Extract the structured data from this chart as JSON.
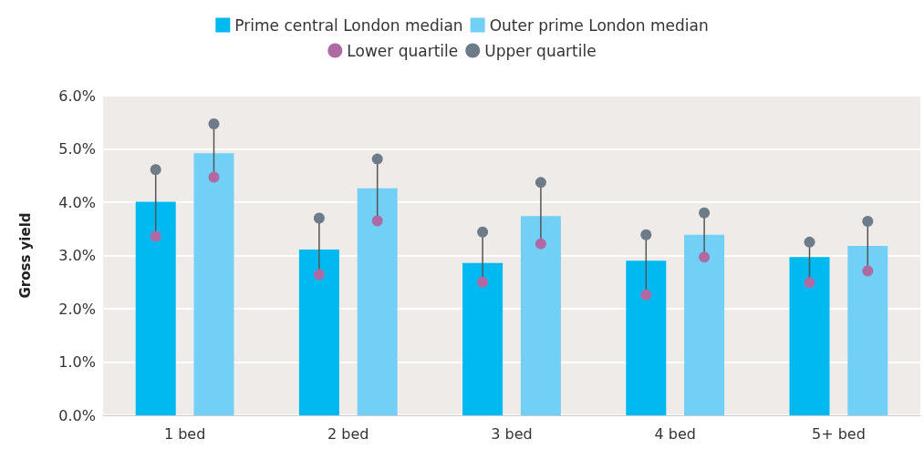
{
  "chart_data": {
    "type": "bar",
    "ylabel": "Gross yield",
    "categories": [
      "1 bed",
      "2 bed",
      "3 bed",
      "4 bed",
      "5+ bed"
    ],
    "series": [
      {
        "name": "Prime central London median",
        "color": "#00b9f0",
        "values": [
          4.01,
          3.11,
          2.86,
          2.9,
          2.97
        ]
      },
      {
        "name": "Outer prime London median",
        "color": "#72cff5",
        "values": [
          4.92,
          4.26,
          3.74,
          3.39,
          3.18
        ]
      },
      {
        "name": "Lower quartile",
        "type": "scatter",
        "color": "#b06aa3",
        "x": [
          "1 bed",
          "1 bed",
          "2 bed",
          "2 bed",
          "3 bed",
          "3 bed",
          "4 bed",
          "4 bed",
          "5+ bed",
          "5+ bed"
        ],
        "values": [
          3.36,
          4.47,
          2.64,
          3.65,
          2.5,
          3.22,
          2.26,
          2.97,
          2.49,
          2.71
        ]
      },
      {
        "name": "Upper quartile",
        "type": "scatter",
        "color": "#6e7b88",
        "x": [
          "1 bed",
          "1 bed",
          "2 bed",
          "2 bed",
          "3 bed",
          "3 bed",
          "4 bed",
          "4 bed",
          "5+ bed",
          "5+ bed"
        ],
        "values": [
          4.61,
          5.47,
          3.7,
          4.81,
          3.44,
          4.37,
          3.39,
          3.8,
          3.25,
          3.64
        ]
      }
    ],
    "ylim": [
      0,
      6
    ],
    "yticks": [
      {
        "value": 0,
        "label": "0.0%"
      },
      {
        "value": 1,
        "label": "1.0%"
      },
      {
        "value": 2,
        "label": "2.0%"
      },
      {
        "value": 3,
        "label": "3.0%"
      },
      {
        "value": 4,
        "label": "4.0%"
      },
      {
        "value": 5,
        "label": "5.0%"
      },
      {
        "value": 6,
        "label": "6.0%"
      }
    ],
    "grid": "y",
    "legend": "top",
    "marker": "circle"
  }
}
